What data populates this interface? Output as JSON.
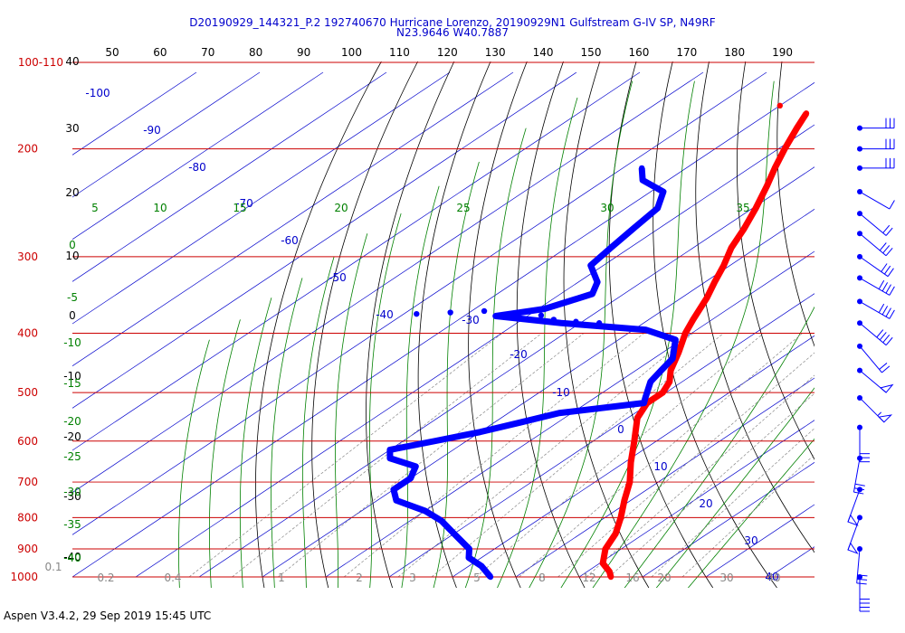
{
  "header": {
    "title_line1": "D20190929_144321_P.2 192740670 Hurricane Lorenzo, 20190929N1 Gulfstream G-IV SP, N49RF",
    "title_line2": "N23.9646 W40.7887"
  },
  "footer": {
    "text": "Aspen V3.4.2, 29 Sep 2019  15:45 UTC"
  },
  "colors": {
    "isobar": "#cc0000",
    "isotherm": "#0000cc",
    "dry_adiabat": "#000000",
    "moist_adiabat": "#008000",
    "mixing_ratio": "#888888",
    "temperature": "#ff0000",
    "dewpoint": "#0000ff"
  },
  "chart_data": {
    "type": "skew-t",
    "pressure_levels": [
      "100-110",
      "200",
      "300",
      "400",
      "500",
      "600",
      "700",
      "800",
      "900",
      "1000"
    ],
    "top_temp_labels": [
      "50",
      "60",
      "70",
      "80",
      "90",
      "100",
      "110",
      "120",
      "130",
      "140",
      "150",
      "160",
      "170",
      "180",
      "190"
    ],
    "left_temp_labels": [
      "40",
      "30",
      "20",
      "10",
      "0",
      "-10",
      "-20",
      "-30",
      "-40"
    ],
    "isotherm_labels": [
      "-100",
      "-90",
      "-80",
      "-70",
      "-60",
      "-50",
      "-40",
      "-30",
      "-20",
      "-10",
      "0",
      "10",
      "20",
      "30",
      "40"
    ],
    "moist_labels_top": [
      "5",
      "10",
      "15",
      "20",
      "25",
      "30",
      "35"
    ],
    "moist_labels_left": [
      "0",
      "-5",
      "-10",
      "-15",
      "-20",
      "-25",
      "-30",
      "-35",
      "-40"
    ],
    "mixing_ratio_labels": [
      "0.1",
      "0.2",
      "0.4",
      "1",
      "2",
      "3",
      "5",
      "8",
      "12",
      "16",
      "20",
      "30",
      "40"
    ],
    "temperature_profile": [
      {
        "p": 175,
        "t": -54.0
      },
      {
        "p": 185,
        "t": -52.0
      },
      {
        "p": 200,
        "t": -49.0
      },
      {
        "p": 215,
        "t": -46.0
      },
      {
        "p": 230,
        "t": -43.0
      },
      {
        "p": 250,
        "t": -39.5
      },
      {
        "p": 270,
        "t": -36.5
      },
      {
        "p": 290,
        "t": -34.0
      },
      {
        "p": 310,
        "t": -31.0
      },
      {
        "p": 330,
        "t": -28.5
      },
      {
        "p": 350,
        "t": -26.0
      },
      {
        "p": 380,
        "t": -23.0
      },
      {
        "p": 400,
        "t": -21.0
      },
      {
        "p": 430,
        "t": -17.5
      },
      {
        "p": 460,
        "t": -14.5
      },
      {
        "p": 480,
        "t": -12.0
      },
      {
        "p": 500,
        "t": -10.5
      },
      {
        "p": 520,
        "t": -10.5
      },
      {
        "p": 550,
        "t": -8.5
      },
      {
        "p": 600,
        "t": -3.5
      },
      {
        "p": 650,
        "t": 1.0
      },
      {
        "p": 700,
        "t": 5.5
      },
      {
        "p": 750,
        "t": 9.0
      },
      {
        "p": 800,
        "t": 12.5
      },
      {
        "p": 850,
        "t": 15.5
      },
      {
        "p": 900,
        "t": 17.5
      },
      {
        "p": 950,
        "t": 20.5
      },
      {
        "p": 980,
        "t": 23.5
      },
      {
        "p": 1000,
        "t": 25.0
      }
    ],
    "temperature_isolated": [
      {
        "p": 170,
        "t": -60.0
      }
    ],
    "dewpoint_profile": [
      {
        "p": 215,
        "t": -67.0
      },
      {
        "p": 225,
        "t": -64.0
      },
      {
        "p": 235,
        "t": -58.0
      },
      {
        "p": 250,
        "t": -55.0
      },
      {
        "p": 270,
        "t": -54.0
      },
      {
        "p": 290,
        "t": -53.0
      },
      {
        "p": 310,
        "t": -52.0
      },
      {
        "p": 330,
        "t": -47.0
      },
      {
        "p": 345,
        "t": -45.0
      },
      {
        "p": 355,
        "t": -47.0
      },
      {
        "p": 365,
        "t": -49.0
      },
      {
        "p": 375,
        "t": -55.0
      },
      {
        "p": 385,
        "t": -43.0
      },
      {
        "p": 395,
        "t": -28.0
      },
      {
        "p": 410,
        "t": -21.0
      },
      {
        "p": 440,
        "t": -17.0
      },
      {
        "p": 460,
        "t": -16.0
      },
      {
        "p": 480,
        "t": -15.0
      },
      {
        "p": 510,
        "t": -12.0
      },
      {
        "p": 520,
        "t": -11.0
      },
      {
        "p": 540,
        "t": -22.0
      },
      {
        "p": 560,
        "t": -26.0
      },
      {
        "p": 580,
        "t": -30.0
      },
      {
        "p": 600,
        "t": -35.0
      },
      {
        "p": 620,
        "t": -40.0
      },
      {
        "p": 640,
        "t": -38.0
      },
      {
        "p": 660,
        "t": -32.0
      },
      {
        "p": 690,
        "t": -30.0
      },
      {
        "p": 720,
        "t": -30.0
      },
      {
        "p": 750,
        "t": -27.0
      },
      {
        "p": 780,
        "t": -20.0
      },
      {
        "p": 810,
        "t": -15.0
      },
      {
        "p": 850,
        "t": -10.0
      },
      {
        "p": 900,
        "t": -4.0
      },
      {
        "p": 930,
        "t": -2.0
      },
      {
        "p": 960,
        "t": 2.0
      },
      {
        "p": 1000,
        "t": 6.0
      }
    ],
    "dewpoint_isolated": [
      {
        "p": 372,
        "t": -68.0
      },
      {
        "p": 370,
        "t": -63.0
      },
      {
        "p": 368,
        "t": -58.0
      },
      {
        "p": 372,
        "t": -52.0
      },
      {
        "p": 374,
        "t": -48.0
      },
      {
        "p": 380,
        "t": -45.0
      },
      {
        "p": 383,
        "t": -41.0
      },
      {
        "p": 385,
        "t": -37.0
      }
    ],
    "wind_barbs": [
      {
        "p": 185,
        "speed": 30,
        "dir": 270
      },
      {
        "p": 200,
        "speed": 30,
        "dir": 270
      },
      {
        "p": 215,
        "speed": 30,
        "dir": 270
      },
      {
        "p": 235,
        "speed": 10,
        "dir": 300
      },
      {
        "p": 255,
        "speed": 20,
        "dir": 310
      },
      {
        "p": 275,
        "speed": 30,
        "dir": 310
      },
      {
        "p": 300,
        "speed": 30,
        "dir": 305
      },
      {
        "p": 325,
        "speed": 40,
        "dir": 300
      },
      {
        "p": 355,
        "speed": 40,
        "dir": 300
      },
      {
        "p": 385,
        "speed": 40,
        "dir": 310
      },
      {
        "p": 420,
        "speed": 20,
        "dir": 320
      },
      {
        "p": 460,
        "speed": 50,
        "dir": 310
      },
      {
        "p": 510,
        "speed": 55,
        "dir": 315
      },
      {
        "p": 570,
        "speed": 30,
        "dir": 0
      },
      {
        "p": 640,
        "speed": 30,
        "dir": 10
      },
      {
        "p": 720,
        "speed": 50,
        "dir": 20
      },
      {
        "p": 800,
        "speed": 50,
        "dir": 20
      },
      {
        "p": 900,
        "speed": 30,
        "dir": 5
      },
      {
        "p": 1000,
        "speed": 40,
        "dir": 0
      }
    ]
  }
}
